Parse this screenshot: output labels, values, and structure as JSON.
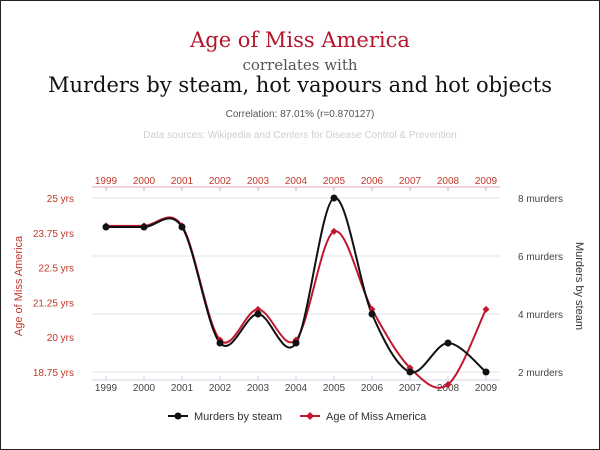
{
  "header": {
    "title_primary": "Age of Miss America",
    "title_connector": "correlates with",
    "title_secondary": "Murders by steam, hot vapours and hot objects",
    "correlation": "Correlation: 87.01% (r=0.870127)",
    "sources": "Data sources: Wikipedia and Centers for Disease Control & Prevention"
  },
  "colors": {
    "accent": "#b3162d",
    "murders_line": "#111111",
    "age_line": "#c0182f",
    "grid": "#dde3ee"
  },
  "chart_data": {
    "type": "line",
    "x": [
      "1999",
      "2000",
      "2001",
      "2002",
      "2003",
      "2004",
      "2005",
      "2006",
      "2007",
      "2008",
      "2009"
    ],
    "left_axis": {
      "label": "Age of Miss America",
      "ticks": [
        "25 yrs",
        "23.75 yrs",
        "22.5 yrs",
        "21.25 yrs",
        "20 yrs",
        "18.75 yrs"
      ],
      "range": [
        18.75,
        25
      ]
    },
    "right_axis": {
      "label": "Murders by steam",
      "ticks": [
        "8 murders",
        "6 murders",
        "4 murders",
        "2 murders"
      ],
      "range": [
        2,
        8
      ]
    },
    "series": [
      {
        "name": "Murders by steam",
        "axis": "right",
        "values": [
          7,
          7,
          7,
          3,
          4,
          3,
          8,
          4,
          2,
          3,
          2
        ]
      },
      {
        "name": "Age of Miss America",
        "axis": "left",
        "values": [
          24,
          24,
          24,
          19.9,
          21.0,
          19.9,
          23.8,
          21.0,
          18.9,
          18.3,
          21.0
        ]
      }
    ],
    "legend_position": "bottom",
    "grid": true
  }
}
